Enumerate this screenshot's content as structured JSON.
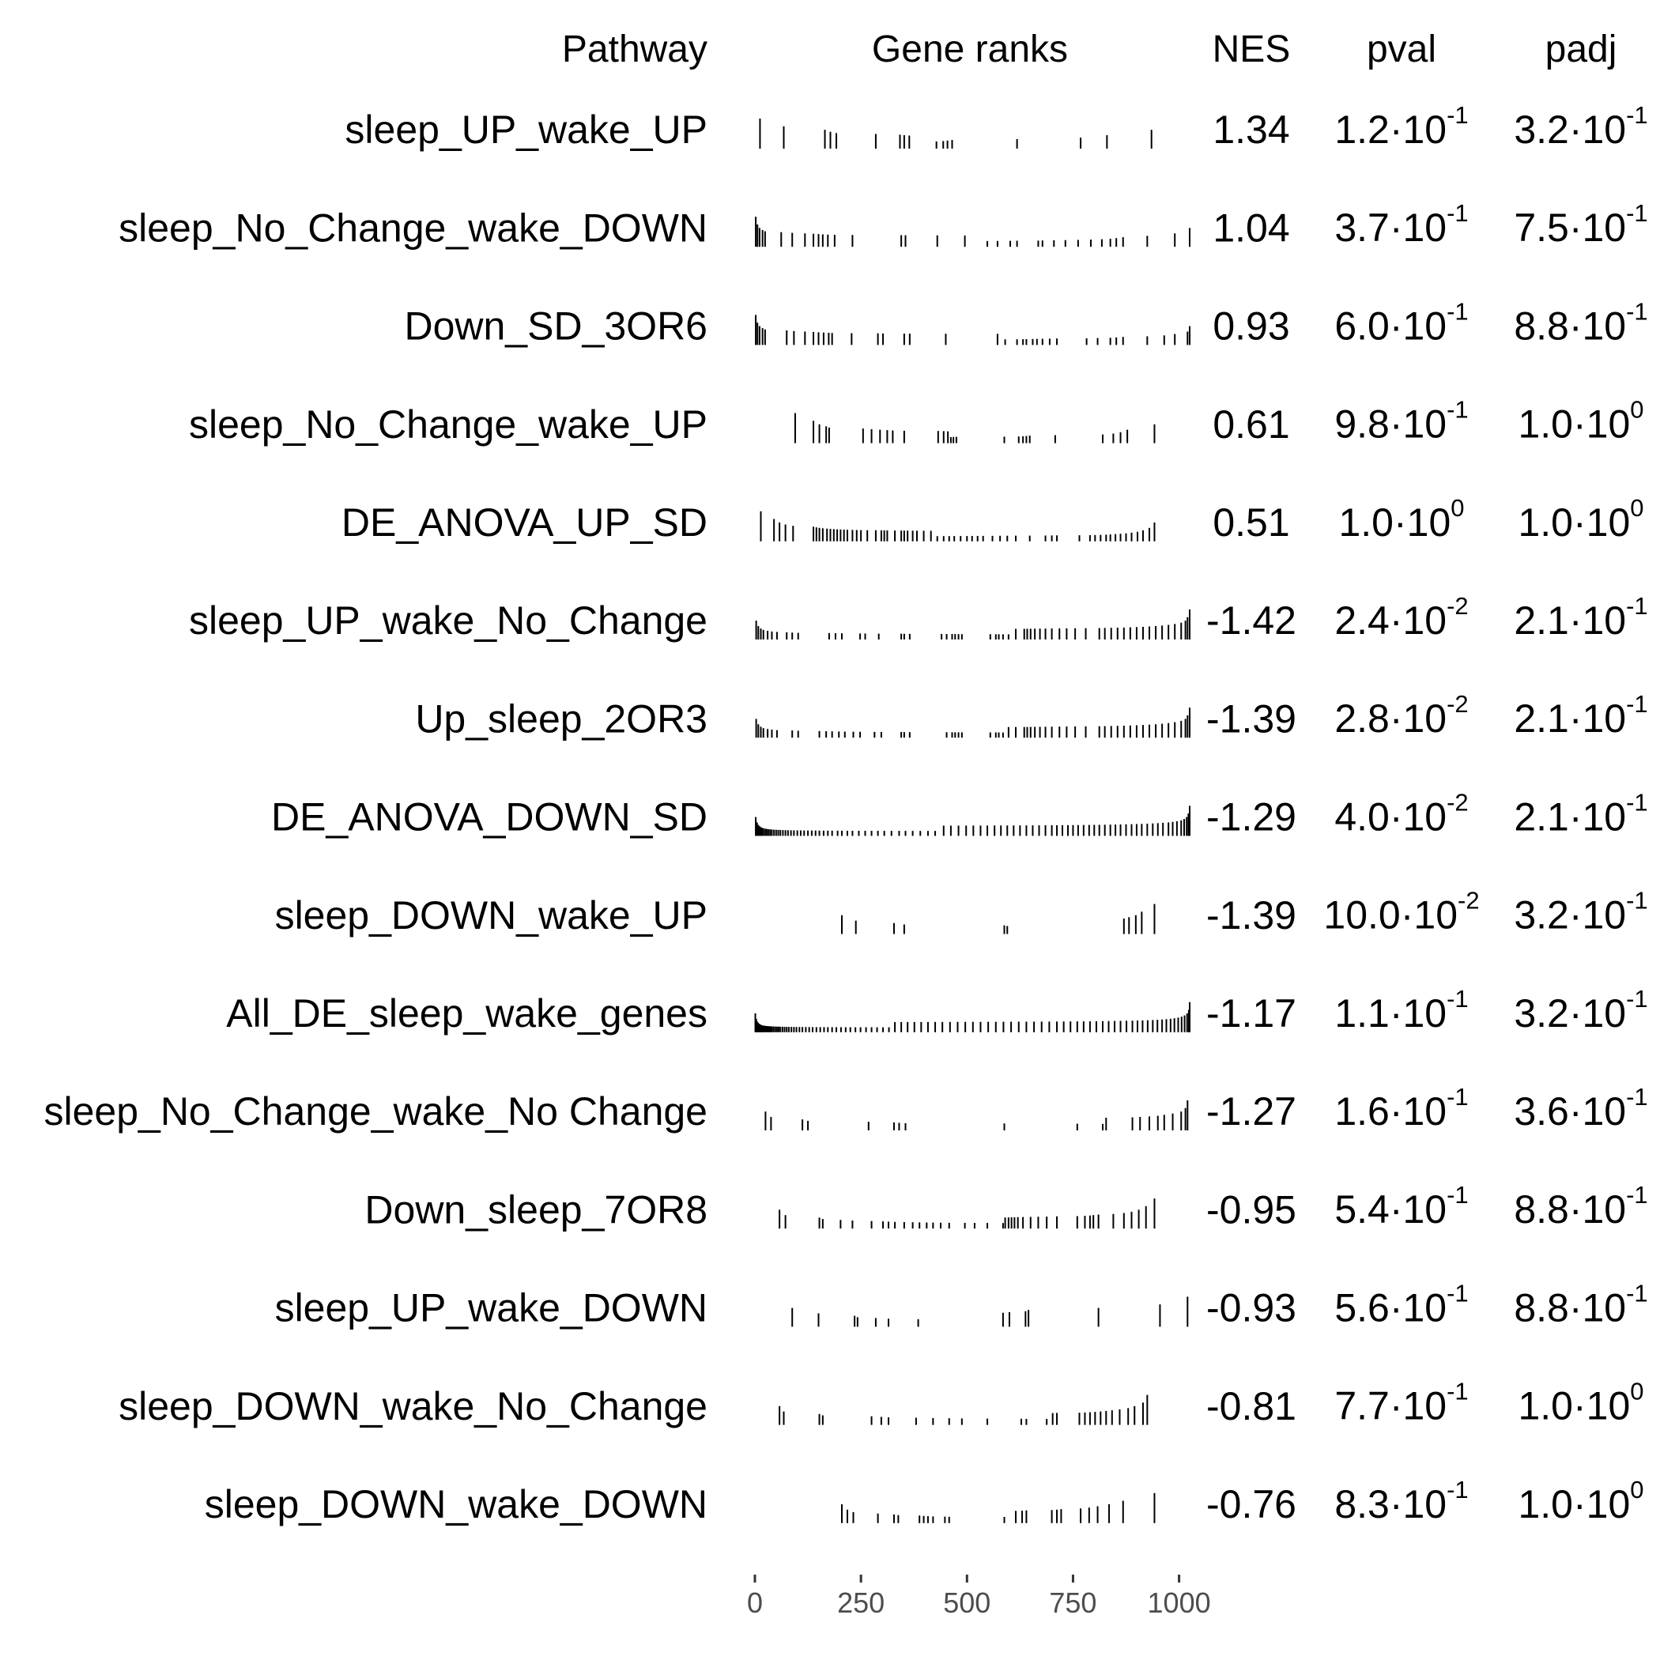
{
  "chart_data": {
    "type": "table",
    "headers": {
      "pathway": "Pathway",
      "gene_ranks": "Gene ranks",
      "nes": "NES",
      "pval": "pval",
      "padj": "padj"
    },
    "x_axis": {
      "ticks": [
        0,
        250,
        500,
        750,
        1000
      ],
      "tick_labels": [
        "0",
        "250",
        "500",
        "750",
        "1000"
      ],
      "range": [
        0,
        1025
      ]
    },
    "rows": [
      {
        "pathway": "sleep_UP_wake_UP",
        "nes": "1.34",
        "pval": {
          "mantissa": "1.2",
          "exponent": "-1"
        },
        "padj": {
          "mantissa": "3.2",
          "exponent": "-1"
        },
        "ranks": [
          12,
          68,
          165,
          178,
          192,
          285,
          342,
          352,
          364,
          428,
          444,
          454,
          465,
          618,
          768,
          830,
          935
        ]
      },
      {
        "pathway": "sleep_No_Change_wake_DOWN",
        "nes": "1.04",
        "pval": {
          "mantissa": "3.7",
          "exponent": "-1"
        },
        "padj": {
          "mantissa": "7.5",
          "exponent": "-1"
        },
        "ranks": [
          2,
          6,
          11,
          18,
          24,
          62,
          88,
          118,
          138,
          150,
          160,
          172,
          188,
          230,
          345,
          355,
          430,
          495,
          548,
          572,
          602,
          618,
          668,
          678,
          705,
          732,
          762,
          792,
          818,
          838,
          852,
          868,
          925,
          990,
          1025
        ]
      },
      {
        "pathway": "Down_SD_3OR6",
        "nes": "0.93",
        "pval": {
          "mantissa": "6.0",
          "exponent": "-1"
        },
        "padj": {
          "mantissa": "8.8",
          "exponent": "-1"
        },
        "ranks": [
          2,
          6,
          11,
          18,
          24,
          75,
          92,
          118,
          138,
          150,
          162,
          174,
          182,
          228,
          290,
          302,
          352,
          365,
          450,
          572,
          590,
          618,
          632,
          640,
          655,
          665,
          678,
          695,
          712,
          782,
          808,
          838,
          852,
          868,
          925,
          965,
          990,
          1020,
          1025
        ]
      },
      {
        "pathway": "sleep_No_Change_wake_UP",
        "nes": "0.61",
        "pval": {
          "mantissa": "9.8",
          "exponent": "-1"
        },
        "padj": {
          "mantissa": "1.0",
          "exponent": "0"
        },
        "ranks": [
          95,
          138,
          152,
          168,
          175,
          255,
          275,
          295,
          312,
          325,
          352,
          432,
          445,
          455,
          462,
          468,
          475,
          588,
          622,
          632,
          640,
          648,
          708,
          820,
          845,
          862,
          878,
          942
        ]
      },
      {
        "pathway": "DE_ANOVA_UP_SD",
        "nes": "0.51",
        "pval": {
          "mantissa": "1.0",
          "exponent": "0"
        },
        "padj": {
          "mantissa": "1.0",
          "exponent": "0"
        },
        "ranks": [
          14,
          45,
          58,
          72,
          90,
          138,
          145,
          152,
          160,
          170,
          178,
          186,
          194,
          202,
          210,
          218,
          230,
          240,
          250,
          265,
          285,
          298,
          305,
          312,
          330,
          345,
          352,
          360,
          372,
          382,
          398,
          415,
          430,
          445,
          458,
          470,
          485,
          500,
          512,
          525,
          538,
          560,
          578,
          595,
          615,
          648,
          685,
          700,
          712,
          765,
          790,
          802,
          815,
          828,
          838,
          850,
          862,
          875,
          888,
          902,
          915,
          930,
          942
        ]
      },
      {
        "pathway": "sleep_UP_wake_No_Change",
        "nes": "-1.42",
        "pval": {
          "mantissa": "2.4",
          "exponent": "-2"
        },
        "padj": {
          "mantissa": "2.1",
          "exponent": "-1"
        },
        "ranks": [
          3,
          8,
          14,
          20,
          30,
          40,
          52,
          75,
          88,
          102,
          175,
          190,
          205,
          248,
          260,
          292,
          345,
          352,
          365,
          440,
          452,
          465,
          472,
          480,
          488,
          555,
          568,
          575,
          585,
          598,
          615,
          635,
          642,
          650,
          660,
          672,
          685,
          700,
          718,
          735,
          755,
          780,
          812,
          825,
          840,
          855,
          870,
          885,
          900,
          915,
          930,
          945,
          960,
          975,
          990,
          1005,
          1015,
          1020,
          1025
        ]
      },
      {
        "pathway": "Up_sleep_2OR3",
        "nes": "-1.39",
        "pval": {
          "mantissa": "2.8",
          "exponent": "-2"
        },
        "padj": {
          "mantissa": "2.1",
          "exponent": "-1"
        },
        "ranks": [
          3,
          8,
          14,
          20,
          30,
          40,
          52,
          88,
          102,
          152,
          168,
          182,
          198,
          212,
          232,
          248,
          282,
          298,
          345,
          352,
          365,
          452,
          465,
          472,
          480,
          488,
          555,
          568,
          575,
          585,
          598,
          615,
          635,
          642,
          650,
          660,
          672,
          685,
          700,
          718,
          735,
          755,
          780,
          812,
          825,
          840,
          855,
          870,
          885,
          900,
          915,
          930,
          945,
          960,
          975,
          990,
          1005,
          1015,
          1020,
          1025
        ]
      },
      {
        "pathway": "DE_ANOVA_DOWN_SD",
        "nes": "-1.29",
        "pval": {
          "mantissa": "4.0",
          "exponent": "-2"
        },
        "padj": {
          "mantissa": "2.1",
          "exponent": "-1"
        },
        "ranks": [
          2,
          5,
          8,
          11,
          14,
          17,
          20,
          24,
          28,
          32,
          36,
          40,
          45,
          50,
          55,
          60,
          66,
          72,
          78,
          85,
          92,
          100,
          108,
          116,
          125,
          134,
          143,
          152,
          162,
          172,
          182,
          195,
          205,
          218,
          230,
          245,
          260,
          275,
          290,
          305,
          322,
          340,
          355,
          372,
          390,
          408,
          425,
          445,
          462,
          480,
          498,
          515,
          532,
          548,
          565,
          580,
          595,
          610,
          625,
          640,
          655,
          670,
          685,
          700,
          712,
          725,
          738,
          750,
          762,
          775,
          788,
          800,
          812,
          825,
          838,
          850,
          862,
          875,
          888,
          900,
          912,
          925,
          938,
          950,
          962,
          975,
          985,
          995,
          1005,
          1012,
          1018,
          1022,
          1025
        ]
      },
      {
        "pathway": "sleep_DOWN_wake_UP",
        "nes": "-1.39",
        "pval": {
          "mantissa": "10.0",
          "exponent": "-2"
        },
        "padj": {
          "mantissa": "3.2",
          "exponent": "-1"
        },
        "ranks": [
          205,
          238,
          328,
          352,
          588,
          595,
          870,
          882,
          898,
          912,
          942
        ]
      },
      {
        "pathway": "All_DE_sleep_wake_genes",
        "nes": "-1.17",
        "pval": {
          "mantissa": "1.1",
          "exponent": "-1"
        },
        "padj": {
          "mantissa": "3.2",
          "exponent": "-1"
        },
        "ranks": [
          1,
          3,
          5,
          7,
          9,
          11,
          13,
          15,
          17,
          19,
          22,
          25,
          28,
          31,
          34,
          37,
          40,
          44,
          48,
          52,
          56,
          60,
          65,
          70,
          75,
          80,
          86,
          92,
          98,
          105,
          112,
          120,
          128,
          136,
          145,
          154,
          163,
          172,
          182,
          192,
          203,
          214,
          225,
          237,
          249,
          262,
          275,
          288,
          302,
          316,
          330,
          345,
          360,
          376,
          392,
          408,
          425,
          442,
          460,
          478,
          496,
          514,
          532,
          550,
          568,
          586,
          604,
          622,
          640,
          658,
          676,
          694,
          712,
          728,
          744,
          760,
          775,
          790,
          805,
          820,
          834,
          848,
          862,
          876,
          890,
          902,
          914,
          926,
          938,
          949,
          960,
          970,
          980,
          989,
          998,
          1006,
          1013,
          1019,
          1023,
          1025
        ]
      },
      {
        "pathway": "sleep_No_Change_wake_No Change",
        "nes": "-1.27",
        "pval": {
          "mantissa": "1.6",
          "exponent": "-1"
        },
        "padj": {
          "mantissa": "3.6",
          "exponent": "-1"
        },
        "ranks": [
          25,
          38,
          112,
          125,
          268,
          328,
          340,
          355,
          588,
          760,
          820,
          828,
          890,
          908,
          930,
          950,
          965,
          985,
          1005,
          1015,
          1020
        ]
      },
      {
        "pathway": "Down_sleep_7OR8",
        "nes": "-0.95",
        "pval": {
          "mantissa": "5.4",
          "exponent": "-1"
        },
        "padj": {
          "mantissa": "8.8",
          "exponent": "-1"
        },
        "ranks": [
          58,
          72,
          152,
          160,
          202,
          230,
          275,
          302,
          315,
          330,
          352,
          372,
          388,
          405,
          420,
          438,
          458,
          495,
          518,
          548,
          585,
          590,
          598,
          605,
          612,
          620,
          632,
          650,
          668,
          688,
          712,
          760,
          778,
          790,
          798,
          810,
          845,
          870,
          888,
          905,
          922,
          942
        ]
      },
      {
        "pathway": "sleep_UP_wake_DOWN",
        "nes": "-0.93",
        "pval": {
          "mantissa": "5.6",
          "exponent": "-1"
        },
        "padj": {
          "mantissa": "8.8",
          "exponent": "-1"
        },
        "ranks": [
          88,
          150,
          235,
          242,
          285,
          315,
          385,
          585,
          600,
          638,
          645,
          810,
          955,
          1020
        ]
      },
      {
        "pathway": "sleep_DOWN_wake_No_Change",
        "nes": "-0.81",
        "pval": {
          "mantissa": "7.7",
          "exponent": "-1"
        },
        "padj": {
          "mantissa": "1.0",
          "exponent": "0"
        },
        "ranks": [
          58,
          68,
          152,
          160,
          275,
          298,
          315,
          380,
          420,
          458,
          488,
          548,
          628,
          640,
          688,
          702,
          712,
          765,
          778,
          790,
          802,
          815,
          828,
          842,
          860,
          880,
          895,
          915,
          925
        ]
      },
      {
        "pathway": "sleep_DOWN_wake_DOWN",
        "nes": "-0.76",
        "pval": {
          "mantissa": "8.3",
          "exponent": "-1"
        },
        "padj": {
          "mantissa": "1.0",
          "exponent": "0"
        },
        "ranks": [
          205,
          218,
          232,
          290,
          328,
          338,
          388,
          398,
          408,
          420,
          448,
          458,
          588,
          615,
          630,
          640,
          700,
          712,
          722,
          768,
          788,
          808,
          835,
          868,
          942
        ]
      }
    ]
  }
}
